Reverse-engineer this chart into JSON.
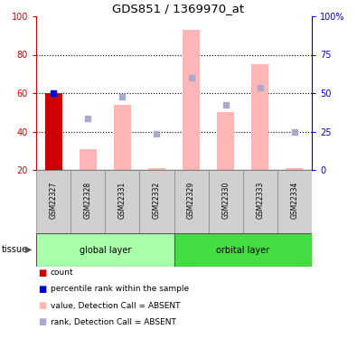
{
  "title": "GDS851 / 1369970_at",
  "samples": [
    "GSM22327",
    "GSM22328",
    "GSM22331",
    "GSM22332",
    "GSM22329",
    "GSM22330",
    "GSM22333",
    "GSM22334"
  ],
  "bar_values": [
    60,
    31,
    54,
    21,
    93,
    50,
    75,
    21
  ],
  "rank_dots": [
    60,
    47,
    58,
    39,
    68,
    54,
    63,
    40
  ],
  "bar_color_absent": "#ffb6b6",
  "rank_dot_color": "#aaaacc",
  "count_bar_value": 60,
  "count_bar_color": "#cc0000",
  "percentile_dot_value": 60,
  "percentile_dot_color": "#0000cc",
  "ylim": [
    20,
    100
  ],
  "yticks_left": [
    20,
    40,
    60,
    80,
    100
  ],
  "left_tick_color": "#cc0000",
  "right_tick_color": "#0000cc",
  "right_tick_positions": [
    20,
    40,
    60,
    80,
    100
  ],
  "right_tick_labels": [
    "0",
    "25",
    "50",
    "75",
    "100%"
  ],
  "global_color": "#aaffaa",
  "orbital_color": "#44dd44",
  "sample_box_color": "#d0d0d0",
  "legend_items": [
    {
      "label": "count",
      "color": "#cc0000"
    },
    {
      "label": "percentile rank within the sample",
      "color": "#0000cc"
    },
    {
      "label": "value, Detection Call = ABSENT",
      "color": "#ffb6b6"
    },
    {
      "label": "rank, Detection Call = ABSENT",
      "color": "#aaaacc"
    }
  ]
}
